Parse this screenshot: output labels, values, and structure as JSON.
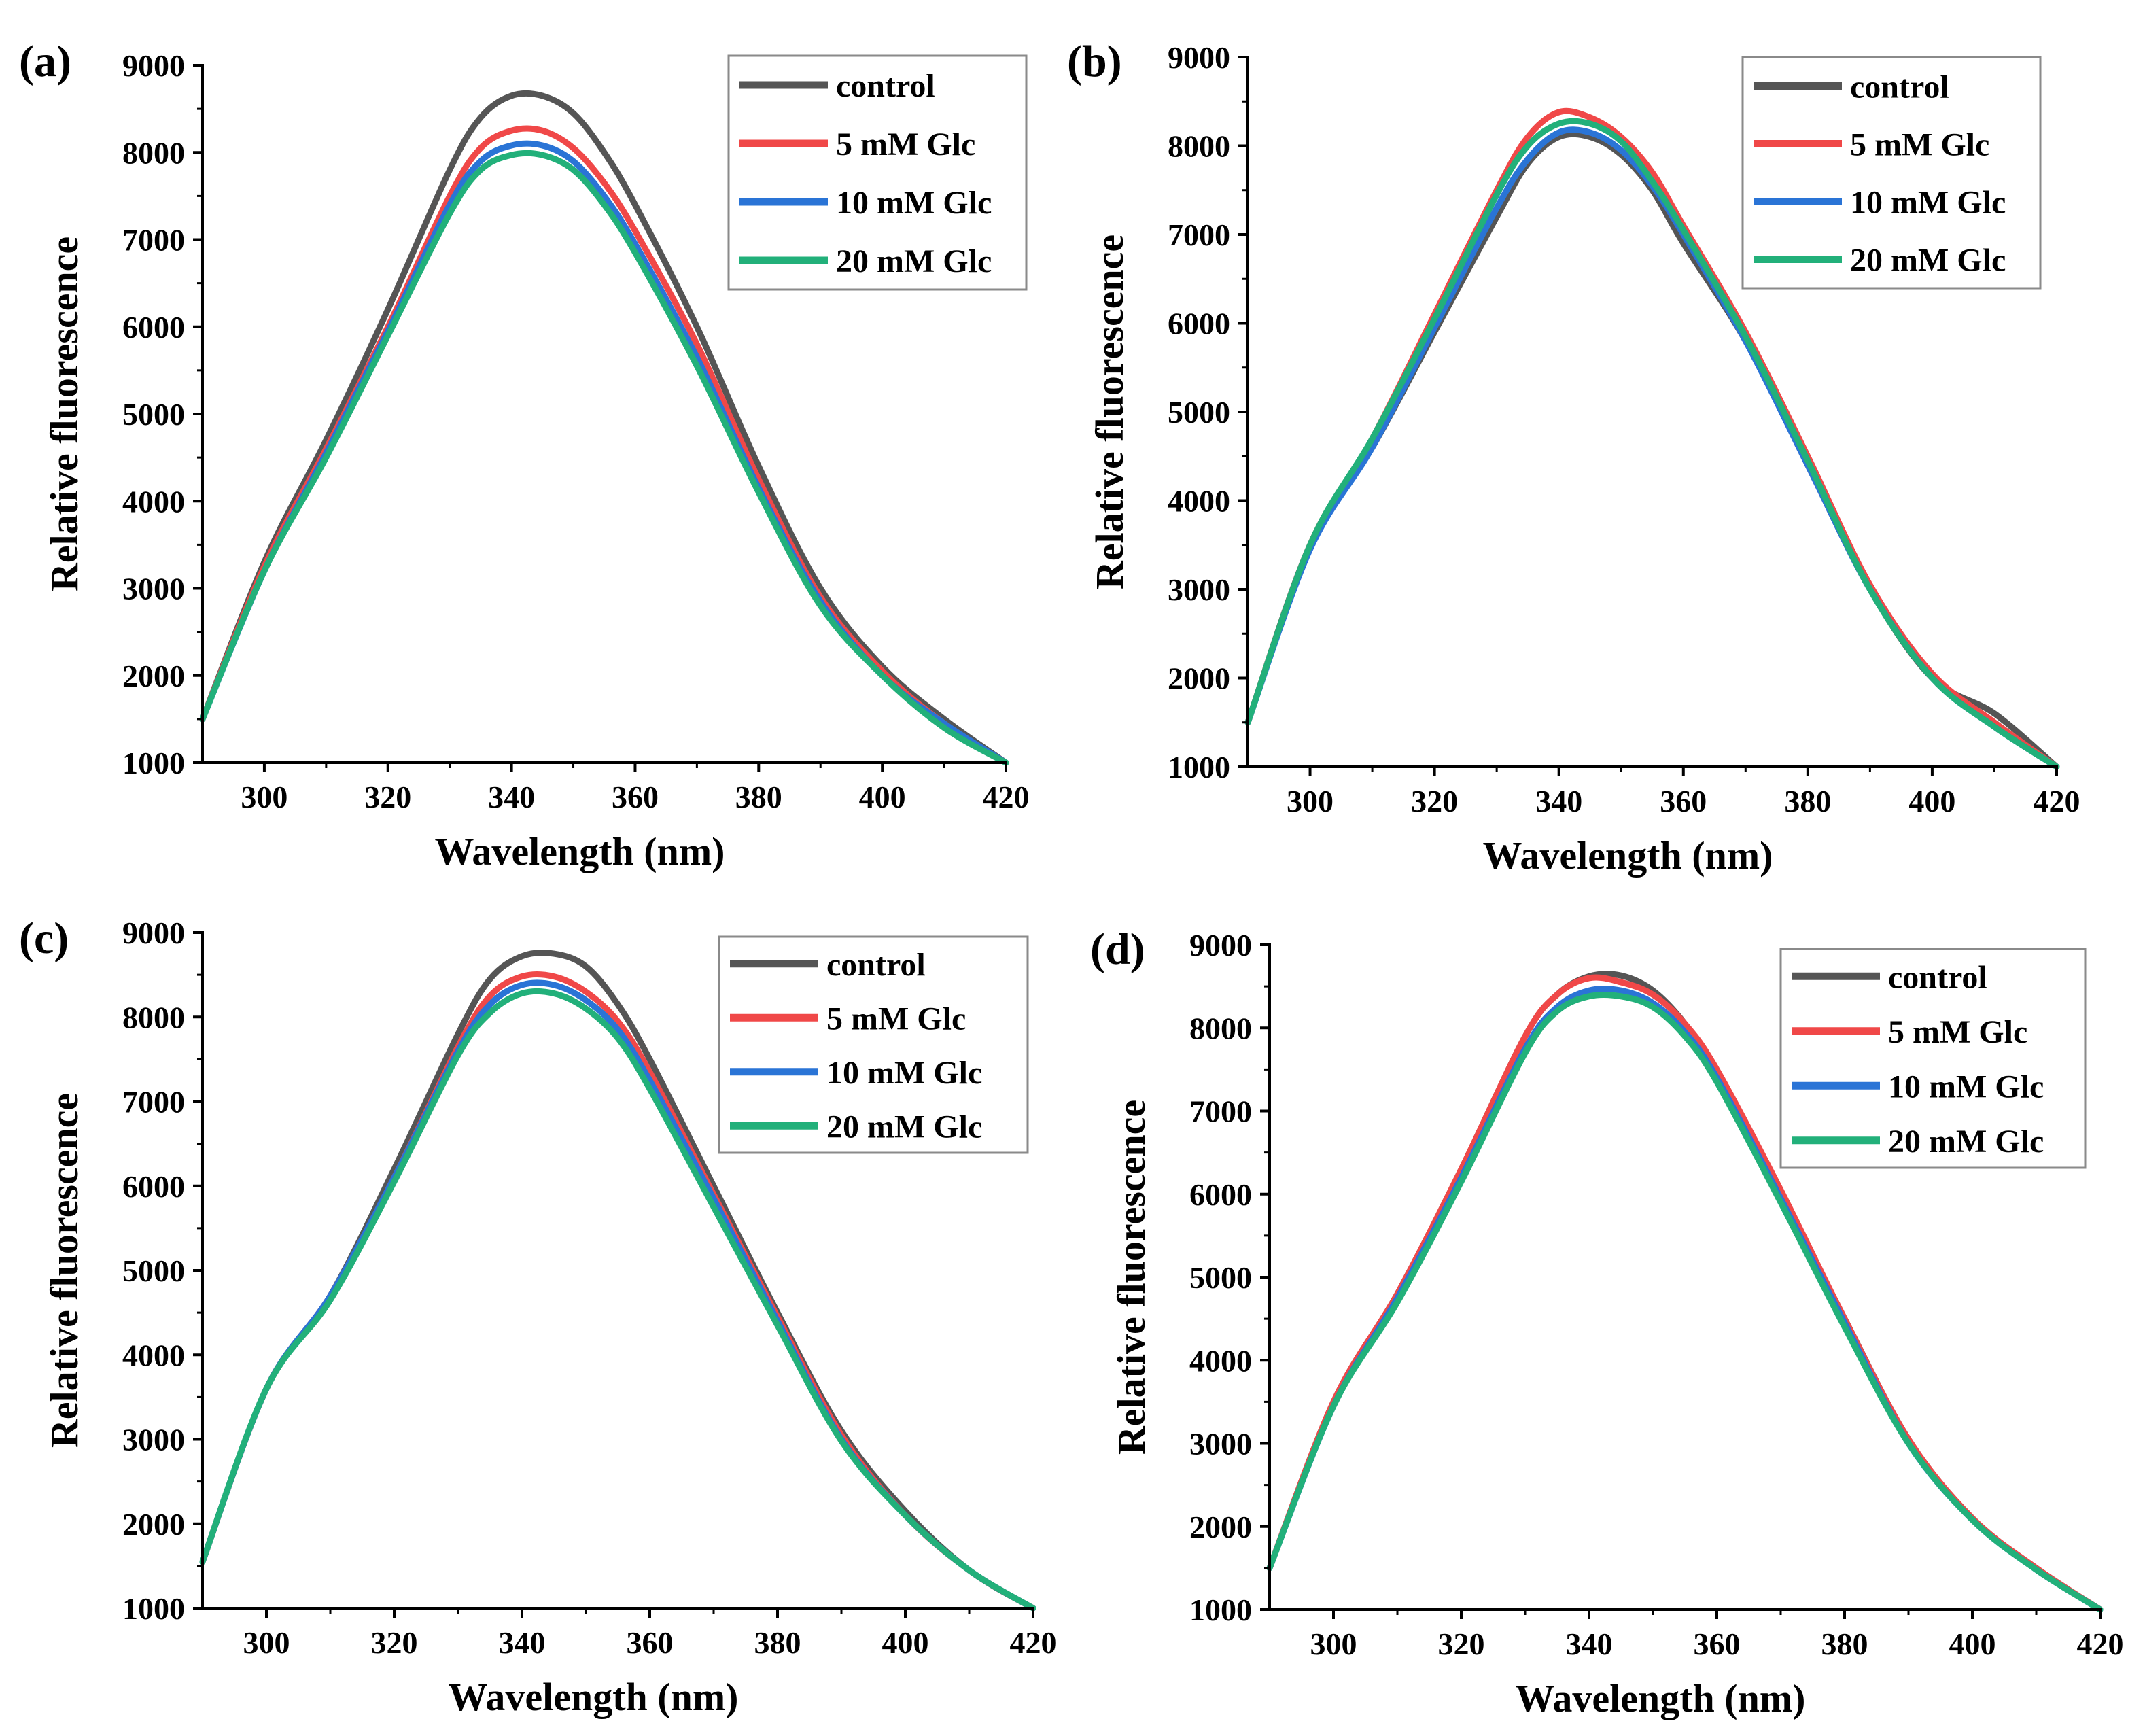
{
  "colors": {
    "control": "#555555",
    "5 mM Glc": "#f04848",
    "10 mM Glc": "#2a74d6",
    "20 mM Glc": "#22b07a"
  },
  "chart_data": [
    {
      "panel": "(a)",
      "type": "line",
      "title": "",
      "xlabel": "Wavelength (nm)",
      "ylabel": "Relative fluorescence",
      "xlim": [
        290,
        420
      ],
      "ylim": [
        1000,
        9000
      ],
      "xticks": [
        300,
        320,
        340,
        360,
        380,
        400,
        420
      ],
      "yticks": [
        1000,
        2000,
        3000,
        4000,
        5000,
        6000,
        7000,
        8000,
        9000
      ],
      "legend_position": "top-right",
      "x": [
        290,
        300,
        310,
        320,
        330,
        335,
        340,
        345,
        350,
        355,
        360,
        370,
        380,
        390,
        400,
        410,
        420
      ],
      "series": [
        {
          "name": "control",
          "values": [
            1500,
            3300,
            4700,
            6200,
            7800,
            8400,
            8650,
            8650,
            8450,
            8000,
            7400,
            6000,
            4400,
            3000,
            2100,
            1500,
            1000
          ]
        },
        {
          "name": "5 mM Glc",
          "values": [
            1500,
            3250,
            4600,
            6000,
            7500,
            8050,
            8250,
            8250,
            8050,
            7650,
            7100,
            5800,
            4250,
            2900,
            2050,
            1450,
            1000
          ]
        },
        {
          "name": "10 mM Glc",
          "values": [
            1500,
            3200,
            4550,
            5950,
            7400,
            7900,
            8080,
            8080,
            7900,
            7500,
            6950,
            5650,
            4150,
            2850,
            2000,
            1450,
            1000
          ]
        },
        {
          "name": "20 mM Glc",
          "values": [
            1500,
            3200,
            4500,
            5900,
            7300,
            7800,
            7970,
            7970,
            7800,
            7400,
            6850,
            5550,
            4100,
            2800,
            2000,
            1400,
            1000
          ]
        }
      ]
    },
    {
      "panel": "(b)",
      "type": "line",
      "title": "",
      "xlabel": "Wavelength (nm)",
      "ylabel": "Relative fluorescence",
      "xlim": [
        290,
        420
      ],
      "ylim": [
        1000,
        9000
      ],
      "xticks": [
        300,
        320,
        340,
        360,
        380,
        400,
        420
      ],
      "yticks": [
        1000,
        2000,
        3000,
        4000,
        5000,
        6000,
        7000,
        8000,
        9000
      ],
      "legend_position": "top-right",
      "x": [
        290,
        300,
        310,
        320,
        330,
        335,
        340,
        345,
        350,
        355,
        360,
        370,
        380,
        390,
        400,
        410,
        420
      ],
      "series": [
        {
          "name": "control",
          "values": [
            1500,
            3500,
            4600,
            5900,
            7200,
            7800,
            8100,
            8100,
            7900,
            7500,
            6900,
            5800,
            4400,
            3000,
            2000,
            1600,
            1000
          ]
        },
        {
          "name": "5 mM Glc",
          "values": [
            1500,
            3500,
            4700,
            6100,
            7500,
            8100,
            8380,
            8320,
            8100,
            7700,
            7100,
            5900,
            4500,
            3050,
            2050,
            1500,
            1000
          ]
        },
        {
          "name": "10 mM Glc",
          "values": [
            1500,
            3450,
            4600,
            5950,
            7300,
            7850,
            8150,
            8150,
            7950,
            7550,
            7000,
            5800,
            4400,
            3000,
            2000,
            1450,
            1000
          ]
        },
        {
          "name": "20 mM Glc",
          "values": [
            1500,
            3500,
            4700,
            6050,
            7450,
            8000,
            8250,
            8250,
            8050,
            7600,
            7050,
            5850,
            4450,
            3000,
            2000,
            1450,
            1000
          ]
        }
      ]
    },
    {
      "panel": "(c)",
      "type": "line",
      "title": "",
      "xlabel": "Wavelength (nm)",
      "ylabel": "Relative fluorescence",
      "xlim": [
        290,
        420
      ],
      "ylim": [
        1000,
        9000
      ],
      "xticks": [
        300,
        320,
        340,
        360,
        380,
        400,
        420
      ],
      "yticks": [
        1000,
        2000,
        3000,
        4000,
        5000,
        6000,
        7000,
        8000,
        9000
      ],
      "legend_position": "top-right",
      "x": [
        290,
        300,
        310,
        320,
        330,
        335,
        340,
        345,
        350,
        355,
        360,
        370,
        380,
        390,
        400,
        410,
        420
      ],
      "series": [
        {
          "name": "control",
          "values": [
            1550,
            3600,
            4700,
            6200,
            7800,
            8450,
            8720,
            8750,
            8600,
            8150,
            7500,
            6000,
            4500,
            3100,
            2150,
            1450,
            1000
          ]
        },
        {
          "name": "5 mM Glc",
          "values": [
            1550,
            3600,
            4700,
            6100,
            7650,
            8250,
            8480,
            8480,
            8300,
            7950,
            7350,
            5900,
            4450,
            3050,
            2100,
            1450,
            1000
          ]
        },
        {
          "name": "10 mM Glc",
          "values": [
            1550,
            3600,
            4700,
            6100,
            7600,
            8150,
            8380,
            8380,
            8200,
            7850,
            7250,
            5850,
            4400,
            3000,
            2100,
            1450,
            1000
          ]
        },
        {
          "name": "20 mM Glc",
          "values": [
            1550,
            3600,
            4650,
            6050,
            7550,
            8050,
            8280,
            8280,
            8100,
            7750,
            7150,
            5750,
            4350,
            2980,
            2100,
            1450,
            1000
          ]
        }
      ]
    },
    {
      "panel": "(d)",
      "type": "line",
      "title": "",
      "xlabel": "Wavelength (nm)",
      "ylabel": "Relative fluorescence",
      "xlim": [
        290,
        420
      ],
      "ylim": [
        1000,
        9000
      ],
      "xticks": [
        300,
        320,
        340,
        360,
        380,
        400,
        420
      ],
      "yticks": [
        1000,
        2000,
        3000,
        4000,
        5000,
        6000,
        7000,
        8000,
        9000
      ],
      "legend_position": "top-right",
      "x": [
        290,
        300,
        310,
        320,
        330,
        335,
        340,
        345,
        350,
        355,
        360,
        370,
        380,
        390,
        400,
        410,
        420
      ],
      "series": [
        {
          "name": "control",
          "values": [
            1500,
            3500,
            4800,
            6300,
            7900,
            8400,
            8620,
            8630,
            8450,
            8050,
            7450,
            6000,
            4500,
            3050,
            2100,
            1500,
            1000
          ]
        },
        {
          "name": "5 mM Glc",
          "values": [
            1500,
            3500,
            4800,
            6300,
            7900,
            8400,
            8600,
            8550,
            8400,
            8050,
            7500,
            6050,
            4500,
            3050,
            2100,
            1500,
            1000
          ]
        },
        {
          "name": "10 mM Glc",
          "values": [
            1500,
            3450,
            4750,
            6200,
            7750,
            8250,
            8450,
            8450,
            8300,
            7950,
            7400,
            5950,
            4450,
            3000,
            2080,
            1480,
            1000
          ]
        },
        {
          "name": "20 mM Glc",
          "values": [
            1500,
            3450,
            4700,
            6150,
            7700,
            8200,
            8380,
            8380,
            8250,
            7900,
            7350,
            5900,
            4400,
            3000,
            2080,
            1480,
            1000
          ]
        }
      ]
    }
  ]
}
